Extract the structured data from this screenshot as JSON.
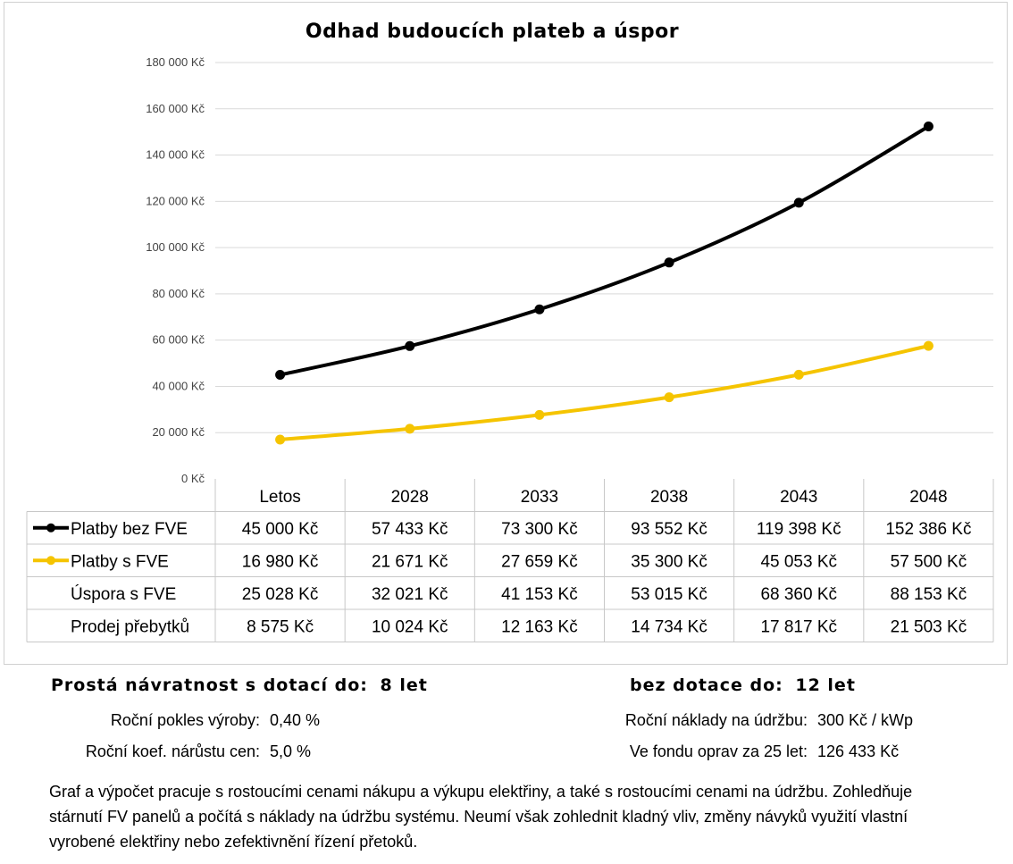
{
  "chart_data": {
    "type": "line",
    "title": "Odhad budoucích plateb a úspor",
    "categories": [
      "Letos",
      "2028",
      "2033",
      "2038",
      "2043",
      "2048"
    ],
    "ylim": [
      0,
      180000
    ],
    "yticks": [
      "0 Kč",
      "20 000 Kč",
      "40 000 Kč",
      "60 000 Kč",
      "80 000 Kč",
      "100 000 Kč",
      "120 000 Kč",
      "140 000 Kč",
      "160 000 Kč",
      "180 000 Kč"
    ],
    "ytick_values": [
      0,
      20000,
      40000,
      60000,
      80000,
      100000,
      120000,
      140000,
      160000,
      180000
    ],
    "grid": true,
    "legend": "data-table",
    "series": [
      {
        "name": "Platby bez FVE",
        "color": "#000000",
        "marker": true,
        "values": [
          45000,
          57433,
          73300,
          93552,
          119398,
          152386
        ],
        "labels": [
          "45 000 Kč",
          "57 433 Kč",
          "73 300 Kč",
          "93 552 Kč",
          "119 398 Kč",
          "152 386 Kč"
        ]
      },
      {
        "name": "Platby s FVE",
        "color": "#f5c400",
        "marker": true,
        "values": [
          16980,
          21671,
          27659,
          35300,
          45053,
          57500
        ],
        "labels": [
          "16 980 Kč",
          "21 671 Kč",
          "27 659 Kč",
          "35 300 Kč",
          "45 053 Kč",
          "57 500 Kč"
        ]
      }
    ],
    "table_rows": [
      {
        "name": "Úspora s FVE",
        "values": [
          25028,
          32021,
          41153,
          53015,
          68360,
          88153
        ],
        "labels": [
          "25 028 Kč",
          "32 021 Kč",
          "41 153 Kč",
          "53 015 Kč",
          "68 360 Kč",
          "88 153 Kč"
        ]
      },
      {
        "name": "Prodej přebytků",
        "values": [
          8575,
          10024,
          12163,
          14734,
          17817,
          21503
        ],
        "labels": [
          "8 575 Kč",
          "10 024 Kč",
          "12 163 Kč",
          "14 734 Kč",
          "17 817 Kč",
          "21 503 Kč"
        ]
      }
    ]
  },
  "summary": {
    "with_subsidy_label": "Prostá návratnost s dotací do:",
    "with_subsidy_value": "8 let",
    "without_subsidy_label": "bez dotace do:",
    "without_subsidy_value": "12 let"
  },
  "params": {
    "decline_label": "Roční pokles výroby:",
    "decline_value": "0,40 %",
    "price_growth_label": "Roční koef. nárůstu cen:",
    "price_growth_value": "5,0 %",
    "maintenance_label": "Roční náklady na údržbu:",
    "maintenance_value": "300 Kč / kWp",
    "repair_fund_label": "Ve fondu oprav za 25 let:",
    "repair_fund_value": "126 433 Kč"
  },
  "note": "Graf a výpočet pracuje s rostoucími cenami nákupu a výkupu elektřiny, a také s rostoucími cenami na údržbu. Zohledňuje stárnutí FV panelů a počítá s náklady na údržbu systému. Neumí však zohlednit kladný vliv, změny návyků využití vlastní vyrobené elektřiny nebo zefektivnění řízení přetoků."
}
